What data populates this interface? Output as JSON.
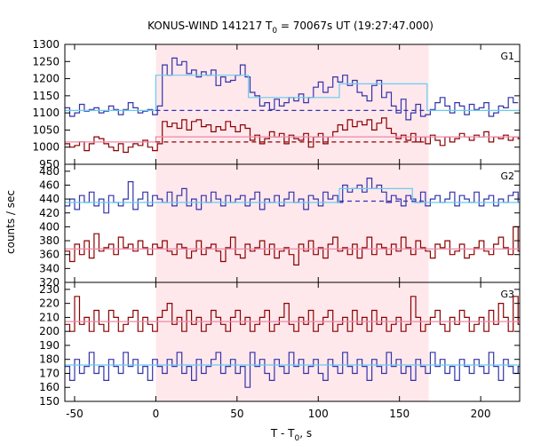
{
  "chart_data": {
    "type": "line",
    "title": {
      "main": "KONUS-WIND 141217 T",
      "sub": "0",
      "rest": " = 70067s UT (19:27:47.000)"
    },
    "xlabel": {
      "main": "T - T",
      "sub": "0",
      "rest": ", s"
    },
    "ylabel": "counts / sec",
    "xlim": [
      -56,
      224
    ],
    "xticks": [
      -50,
      0,
      50,
      100,
      150,
      200
    ],
    "highlight_interval": [
      0,
      168
    ],
    "panels": [
      {
        "label": "G1",
        "ylim": [
          950,
          1300
        ],
        "yticks": [
          950,
          1000,
          1050,
          1100,
          1150,
          1200,
          1250,
          1300
        ],
        "series": [
          {
            "color": "#3333aa",
            "step": 3,
            "x_start": -56,
            "values": [
              1115,
              1090,
              1100,
              1125,
              1105,
              1110,
              1115,
              1100,
              1105,
              1120,
              1110,
              1095,
              1110,
              1130,
              1115,
              1100,
              1105,
              1110,
              1095,
              1120,
              1240,
              1210,
              1260,
              1240,
              1250,
              1215,
              1225,
              1205,
              1220,
              1210,
              1225,
              1180,
              1205,
              1190,
              1195,
              1210,
              1240,
              1205,
              1160,
              1150,
              1120,
              1130,
              1110,
              1140,
              1120,
              1130,
              1145,
              1135,
              1155,
              1130,
              1145,
              1175,
              1190,
              1160,
              1175,
              1205,
              1190,
              1210,
              1180,
              1195,
              1160,
              1150,
              1135,
              1180,
              1195,
              1145,
              1160,
              1120,
              1100,
              1140,
              1080,
              1100,
              1125,
              1090,
              1095,
              1110,
              1130,
              1145,
              1120,
              1100,
              1130,
              1120,
              1095,
              1125,
              1110,
              1115,
              1130,
              1090,
              1100,
              1120,
              1115,
              1145,
              1130
            ]
          },
          {
            "color": "#8b0000",
            "step": 3,
            "x_start": -56,
            "values": [
              1010,
              1000,
              1005,
              1015,
              990,
              1010,
              1030,
              1025,
              1010,
              1000,
              990,
              1010,
              985,
              1000,
              1010,
              1005,
              1020,
              1000,
              990,
              1010,
              1075,
              1060,
              1070,
              1055,
              1080,
              1050,
              1075,
              1080,
              1060,
              1065,
              1045,
              1060,
              1050,
              1075,
              1060,
              1045,
              1065,
              1055,
              1020,
              1035,
              1010,
              1025,
              1045,
              1030,
              1040,
              1010,
              1035,
              1025,
              1020,
              1040,
              1000,
              1030,
              1040,
              1010,
              1030,
              1045,
              1065,
              1050,
              1080,
              1060,
              1075,
              1065,
              1080,
              1050,
              1070,
              1085,
              1055,
              1040,
              1025,
              1035,
              1020,
              1040,
              1015,
              1030,
              1010,
              1035,
              1020,
              1005,
              1030,
              1015,
              1025,
              1040,
              1030,
              1020,
              1035,
              1030,
              1045,
              1015,
              1030,
              1025,
              1035,
              1020,
              1030,
              1025
            ]
          }
        ],
        "fits": [
          {
            "color": "#66ccee",
            "dash": false,
            "points": [
              [
                -56,
                1107
              ],
              [
                0,
                1107
              ],
              [
                0,
                1210
              ],
              [
                57,
                1210
              ],
              [
                57,
                1145
              ],
              [
                113,
                1145
              ],
              [
                113,
                1185
              ],
              [
                167,
                1185
              ],
              [
                167,
                1107
              ],
              [
                224,
                1107
              ]
            ]
          },
          {
            "color": "#3333aa",
            "dash": true,
            "points": [
              [
                0,
                1107
              ],
              [
                167,
                1107
              ]
            ]
          },
          {
            "color": "#ee88aa",
            "dash": false,
            "points": [
              [
                -56,
                1015
              ],
              [
                0,
                1015
              ],
              [
                0,
                1030
              ],
              [
                167,
                1030
              ],
              [
                167,
                1030
              ],
              [
                224,
                1030
              ]
            ]
          },
          {
            "color": "#8b0000",
            "dash": true,
            "points": [
              [
                0,
                1015
              ],
              [
                167,
                1015
              ]
            ]
          }
        ]
      },
      {
        "label": "G2",
        "ylim": [
          320,
          490
        ],
        "yticks": [
          320,
          340,
          360,
          380,
          400,
          420,
          440,
          460,
          480
        ],
        "series": [
          {
            "color": "#3333aa",
            "step": 3,
            "x_start": -56,
            "values": [
              430,
              440,
              425,
              445,
              435,
              450,
              430,
              440,
              420,
              445,
              435,
              430,
              440,
              465,
              425,
              440,
              450,
              430,
              445,
              440,
              435,
              450,
              430,
              445,
              455,
              430,
              440,
              425,
              445,
              435,
              450,
              440,
              430,
              445,
              435,
              440,
              445,
              430,
              440,
              450,
              425,
              440,
              435,
              445,
              430,
              440,
              450,
              435,
              440,
              425,
              445,
              440,
              430,
              450,
              440,
              445,
              435,
              460,
              450,
              455,
              460,
              450,
              470,
              455,
              460,
              450,
              435,
              445,
              440,
              430,
              445,
              440,
              435,
              450,
              430,
              440,
              445,
              435,
              440,
              450,
              430,
              445,
              440,
              435,
              450,
              430,
              440,
              445,
              430,
              440,
              435,
              445,
              450,
              435
            ]
          },
          {
            "color": "#8b0000",
            "step": 3,
            "x_start": -56,
            "values": [
              365,
              350,
              375,
              360,
              380,
              355,
              390,
              365,
              370,
              375,
              360,
              385,
              370,
              375,
              365,
              380,
              370,
              360,
              375,
              370,
              380,
              365,
              360,
              375,
              370,
              355,
              365,
              380,
              360,
              370,
              375,
              365,
              350,
              370,
              385,
              360,
              355,
              375,
              365,
              370,
              380,
              360,
              375,
              355,
              365,
              370,
              360,
              345,
              375,
              365,
              380,
              360,
              370,
              355,
              375,
              385,
              365,
              370,
              360,
              375,
              355,
              370,
              385,
              360,
              375,
              370,
              360,
              375,
              365,
              385,
              370,
              360,
              380,
              370,
              365,
              355,
              375,
              370,
              380,
              360,
              365,
              375,
              355,
              360,
              370,
              380,
              365,
              360,
              375,
              385,
              370,
              360,
              400,
              365
            ]
          }
        ],
        "fits": [
          {
            "color": "#66ccee",
            "dash": false,
            "points": [
              [
                -56,
                435
              ],
              [
                113,
                435
              ],
              [
                113,
                455
              ],
              [
                158,
                455
              ],
              [
                158,
                435
              ],
              [
                224,
                435
              ]
            ]
          },
          {
            "color": "#3333aa",
            "dash": true,
            "points": [
              [
                113,
                437
              ],
              [
                167,
                437
              ]
            ]
          },
          {
            "color": "#ee88aa",
            "dash": false,
            "points": [
              [
                -56,
                368
              ],
              [
                224,
                368
              ]
            ]
          }
        ]
      },
      {
        "label": "G3",
        "ylim": [
          150,
          235
        ],
        "yticks": [
          150,
          160,
          170,
          180,
          190,
          200,
          210,
          220,
          230
        ],
        "series": [
          {
            "color": "#8b0000",
            "step": 3,
            "x_start": -56,
            "values": [
              205,
              200,
              225,
              205,
              210,
              200,
              215,
              205,
              200,
              215,
              210,
              200,
              205,
              210,
              215,
              200,
              210,
              205,
              200,
              210,
              215,
              220,
              205,
              210,
              200,
              215,
              205,
              210,
              200,
              205,
              215,
              210,
              205,
              200,
              210,
              215,
              205,
              210,
              200,
              205,
              210,
              215,
              200,
              205,
              210,
              220,
              205,
              200,
              210,
              205,
              215,
              200,
              205,
              210,
              215,
              200,
              205,
              210,
              200,
              215,
              205,
              210,
              200,
              215,
              205,
              210,
              200,
              205,
              210,
              200,
              205,
              225,
              210,
              200,
              205,
              210,
              215,
              205,
              200,
              210,
              205,
              215,
              210,
              200,
              205,
              210,
              200,
              215,
              205,
              220,
              210,
              200,
              225,
              205
            ]
          },
          {
            "color": "#3333aa",
            "step": 3,
            "x_start": -56,
            "values": [
              175,
              165,
              180,
              170,
              175,
              185,
              170,
              175,
              165,
              180,
              175,
              170,
              185,
              175,
              180,
              170,
              175,
              165,
              180,
              175,
              170,
              180,
              175,
              185,
              170,
              175,
              165,
              180,
              170,
              175,
              180,
              185,
              170,
              175,
              180,
              170,
              175,
              160,
              185,
              175,
              180,
              170,
              165,
              180,
              175,
              170,
              185,
              175,
              180,
              170,
              175,
              180,
              170,
              165,
              180,
              175,
              170,
              185,
              175,
              170,
              180,
              175,
              165,
              180,
              175,
              170,
              185,
              175,
              180,
              170,
              175,
              165,
              180,
              175,
              170,
              185,
              175,
              180,
              170,
              175,
              165,
              180,
              175,
              170,
              180,
              175,
              170,
              185,
              175,
              165,
              180,
              175,
              170,
              175
            ]
          }
        ],
        "fits": [
          {
            "color": "#ee88aa",
            "dash": false,
            "points": [
              [
                -56,
                207
              ],
              [
                224,
                207
              ]
            ]
          },
          {
            "color": "#66ccee",
            "dash": false,
            "points": [
              [
                -56,
                176
              ],
              [
                224,
                176
              ]
            ]
          }
        ]
      }
    ]
  }
}
